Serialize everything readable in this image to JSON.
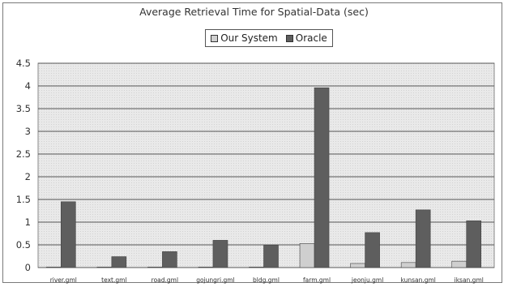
{
  "chart_data": {
    "type": "bar",
    "title": "Average Retrieval Time for Spatial-Data (sec)",
    "xlabel": "",
    "ylabel": "",
    "categories": [
      "river.gml",
      "text.gml",
      "road.gml",
      "gojungri.gml",
      "bldg.gml",
      "farm.gml",
      "jeonju.gml",
      "kunsan.gml",
      "iksan.gml"
    ],
    "series": [
      {
        "name": "Our System",
        "color": "#cfcfcf",
        "values": [
          0.01,
          0.0,
          0.01,
          0.0,
          0.01,
          0.53,
          0.09,
          0.11,
          0.14
        ]
      },
      {
        "name": "Oracle",
        "color": "#5e5e5e",
        "values": [
          1.45,
          0.24,
          0.35,
          0.6,
          0.49,
          3.96,
          0.77,
          1.27,
          1.03
        ]
      }
    ],
    "ylim": [
      0,
      4.5
    ],
    "yticks": [
      "0",
      "0.5",
      "1",
      "1.5",
      "2",
      "2.5",
      "3",
      "3.5",
      "4",
      "4.5"
    ],
    "grid": true,
    "legend_position": "top-center"
  }
}
